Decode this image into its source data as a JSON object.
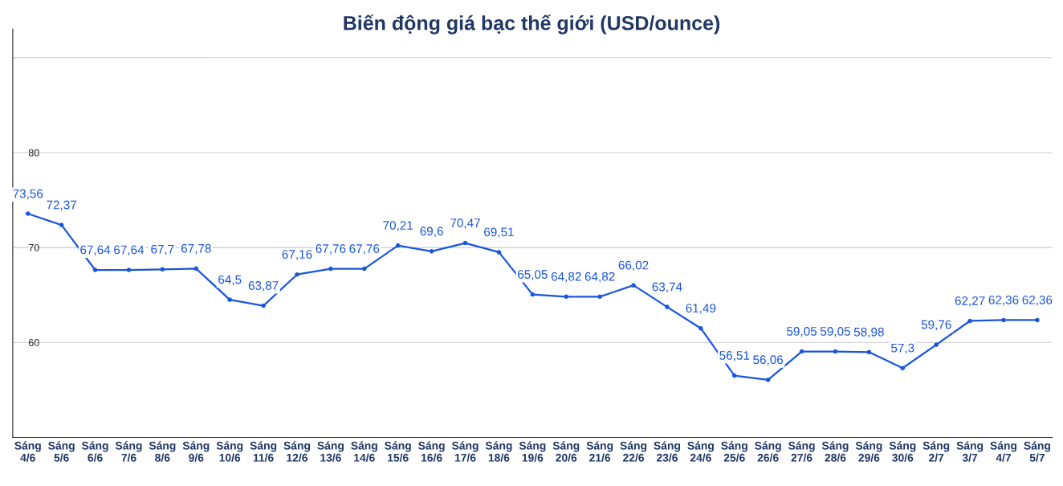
{
  "chart_data": {
    "type": "line",
    "title": "Biến động giá bạc thế giới (USD/ounce)",
    "categories": [
      "Sáng\n4/6",
      "Sáng\n5/6",
      "Sáng\n6/6",
      "Sáng\n7/6",
      "Sáng\n8/6",
      "Sáng\n9/6",
      "Sáng\n10/6",
      "Sáng\n11/6",
      "Sáng\n12/6",
      "Sáng\n13/6",
      "Sáng\n14/6",
      "Sáng\n15/6",
      "Sáng\n16/6",
      "Sáng\n17/6",
      "Sáng\n18/6",
      "Sáng\n19/6",
      "Sáng\n20/6",
      "Sáng\n21/6",
      "Sáng\n22/6",
      "Sáng\n23/6",
      "Sáng\n24/6",
      "Sáng\n25/6",
      "Sáng\n26/6",
      "Sáng\n27/6",
      "Sáng\n28/6",
      "Sáng\n29/6",
      "Sáng\n30/6",
      "Sáng\n2/7",
      "Sáng\n3/7",
      "Sáng\n4/7",
      "Sáng\n5/7"
    ],
    "series": [
      {
        "color": "#1a56db",
        "values": [
          73.56,
          72.37,
          67.64,
          67.64,
          67.7,
          67.78,
          64.5,
          63.87,
          67.16,
          67.76,
          67.76,
          70.21,
          69.6,
          70.47,
          69.51,
          65.05,
          64.82,
          64.82,
          66.02,
          63.74,
          61.49,
          56.51,
          56.06,
          59.05,
          59.05,
          58.98,
          57.3,
          59.76,
          62.27,
          62.36,
          62.36
        ],
        "value_labels": [
          "73,56",
          "72,37",
          "67,64",
          "67,64",
          "67,7",
          "67,78",
          "64,5",
          "63,87",
          "67,16",
          "67,76",
          "67,76",
          "70,21",
          "69,6",
          "70,47",
          "69,51",
          "65,05",
          "64,82",
          "64,82",
          "66,02",
          "63,74",
          "61,49",
          "56,51",
          "56,06",
          "59,05",
          "59,05",
          "58,98",
          "57,3",
          "59,76",
          "62,27",
          "62,36",
          "62,36"
        ]
      }
    ],
    "ylim": [
      50,
      93
    ],
    "yticks": [
      {
        "value": 50,
        "label": null
      },
      60,
      70,
      80,
      {
        "value": 90,
        "label": null
      }
    ],
    "grid": "y",
    "marker": "circle",
    "line_style": "solid"
  }
}
